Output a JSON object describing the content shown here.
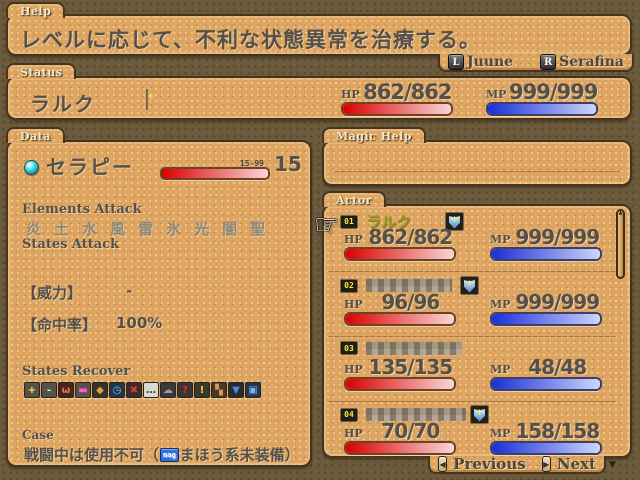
{
  "colors": {
    "background": "#6b5a3b",
    "panel_fill": "#dda561",
    "panel_border": "#463420",
    "tab_label": "#f3e8cb",
    "text_dark": "#55504a",
    "text_disabled": "#8e887b",
    "selected_name": "#96a11d",
    "hp_start": "#dc0000",
    "hp_end": "#f9d6d6",
    "mp_start": "#1a2fd8",
    "mp_end": "#ccd6fa"
  },
  "help": {
    "tab": "Help",
    "text": "レベルに応じて、不利な状態異常を治療する。",
    "l_key": "L",
    "l_name": "Juune",
    "r_key": "R",
    "r_name": "Serafina"
  },
  "status": {
    "tab": "Status",
    "name": "ラルク",
    "hp_label": "HP",
    "hp_value": "862/862",
    "hp_pct": 100,
    "mp_label": "MP",
    "mp_value": "999/999",
    "mp_pct": 100
  },
  "data_panel": {
    "tab": "Data",
    "skill_name": "セラピー",
    "level_range": "15-99",
    "level_value": "15",
    "elements_attack_label": "Elements Attack",
    "elements": [
      "炎",
      "土",
      "水",
      "風",
      "雷",
      "氷",
      "光",
      "闇",
      "聖"
    ],
    "states_attack_label": "States Attack",
    "power_label": "【威力】",
    "power_value": "-",
    "accuracy_label": "【命中率】",
    "accuracy_value": "100%",
    "states_recover_label": "States Recover",
    "state_icons": [
      {
        "name": "heal-face-icon",
        "glyph": "+",
        "bg": "#56524a",
        "fg": "#ffe54d"
      },
      {
        "name": "sleep-face-icon",
        "glyph": "-",
        "bg": "#56524a",
        "fg": "#e9e9e1"
      },
      {
        "name": "berserk-face-icon",
        "glyph": "ω",
        "bg": "#4a2418",
        "fg": "#d87a52"
      },
      {
        "name": "charm-face-icon",
        "glyph": "▬",
        "bg": "#56524a",
        "fg": "#ff5ad2"
      },
      {
        "name": "poison-vial-icon",
        "glyph": "◆",
        "bg": "#37332c",
        "fg": "#e8a23a"
      },
      {
        "name": "time-clock-icon",
        "glyph": "◷",
        "bg": "#24364e",
        "fg": "#74c2f2"
      },
      {
        "name": "seal-x-icon",
        "glyph": "✖",
        "bg": "#3a2e2c",
        "fg": "#e03434"
      },
      {
        "name": "silence-bubble-icon",
        "glyph": "…",
        "bg": "#d9d9d3",
        "fg": "#3c3c3c"
      },
      {
        "name": "blind-smoke-icon",
        "glyph": "☁",
        "bg": "#39393b",
        "fg": "#9c9ca0"
      },
      {
        "name": "confuse-question-icon",
        "glyph": "?",
        "bg": "#3a3434",
        "fg": "#e02a2a"
      },
      {
        "name": "stun-exclamation-icon",
        "glyph": "!",
        "bg": "#3a382e",
        "fg": "#ffd22a"
      },
      {
        "name": "debris-blocks-icon",
        "glyph": "▚",
        "bg": "#4a3827",
        "fg": "#cf9a66"
      },
      {
        "name": "hit-down-icon",
        "glyph": "▼",
        "bg": "#2b2b29",
        "fg": "#3e8ee2"
      },
      {
        "name": "window-icon",
        "glyph": "▣",
        "bg": "#203652",
        "fg": "#7fb2ea"
      }
    ],
    "case_label": "Case",
    "case_text_before": "戦闘中は使用不可（",
    "case_icon_text": "mag",
    "case_text_after": "まほう系未装備）"
  },
  "magic_help": {
    "tab": "Magic Help"
  },
  "actor_panel": {
    "tab": "Actor",
    "rows": [
      {
        "badge": "01",
        "name": "ラルク",
        "censored": false,
        "has_state_icon": true,
        "hp_label": "HP",
        "hp_value": "862/862",
        "hp_pct": 100,
        "mp_label": "MP",
        "mp_value": "999/999",
        "mp_pct": 100
      },
      {
        "badge": "02",
        "name": "",
        "censored": true,
        "has_state_icon": true,
        "hp_label": "HP",
        "hp_value": "96/96",
        "hp_pct": 100,
        "mp_label": "MP",
        "mp_value": "999/999",
        "mp_pct": 100
      },
      {
        "badge": "03",
        "name": "",
        "censored": true,
        "has_state_icon": false,
        "hp_label": "HP",
        "hp_value": "135/135",
        "hp_pct": 100,
        "mp_label": "MP",
        "mp_value": "48/48",
        "mp_pct": 100
      },
      {
        "badge": "04",
        "name": "",
        "censored": true,
        "has_state_icon": true,
        "hp_label": "HP",
        "hp_value": "70/70",
        "hp_pct": 100,
        "mp_label": "MP",
        "mp_value": "158/158",
        "mp_pct": 100
      }
    ],
    "prev_key": "◀",
    "prev_label": "Previous",
    "next_key": "▶",
    "next_label": "Next"
  }
}
